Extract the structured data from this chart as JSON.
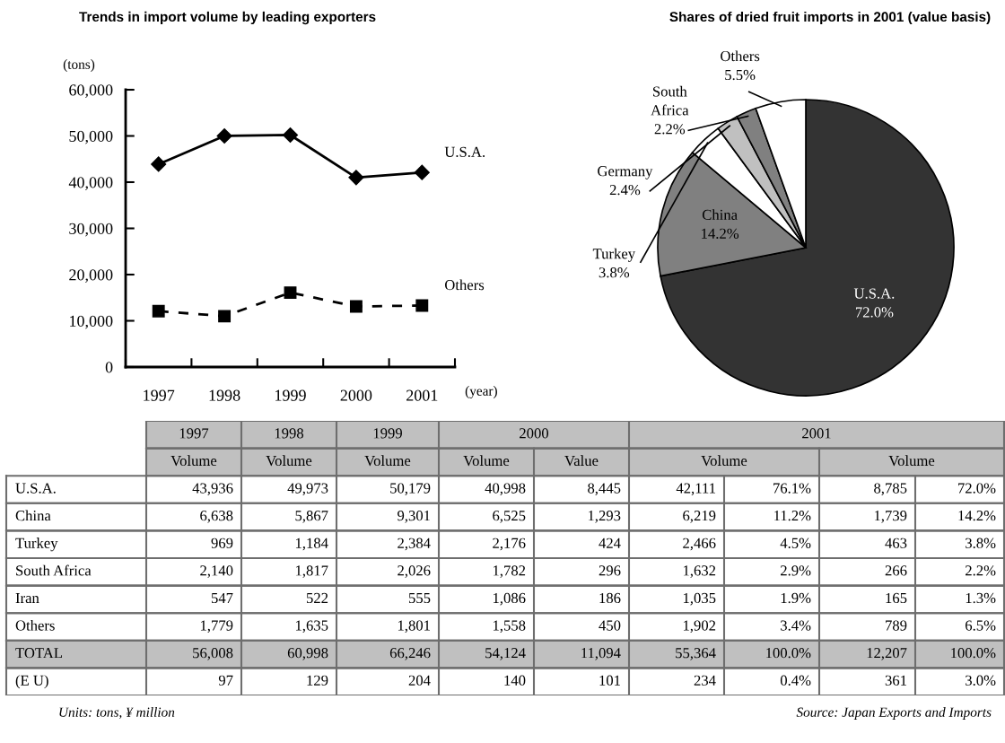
{
  "chart_data": [
    {
      "type": "line",
      "title": "Trends in import volume by leading exporters",
      "ylabel": "(tons)",
      "xlabel": "(year)",
      "categories": [
        "1997",
        "1998",
        "1999",
        "2000",
        "2001"
      ],
      "series": [
        {
          "name": "U.S.A.",
          "color": "#000000",
          "values": [
            43900,
            50000,
            50200,
            41000,
            42100
          ],
          "marker": "diamond",
          "line_style": "solid"
        },
        {
          "name": "Others",
          "color": "#000000",
          "values": [
            12100,
            11000,
            16100,
            13100,
            13300
          ],
          "marker": "square",
          "line_style": "dashed"
        }
      ],
      "ylim": [
        0,
        60000
      ],
      "yticks": [
        {
          "value": 0,
          "label": "0"
        },
        {
          "value": 10000,
          "label": "10,000"
        },
        {
          "value": 20000,
          "label": "20,000"
        },
        {
          "value": 30000,
          "label": "30,000"
        },
        {
          "value": 40000,
          "label": "40,000"
        },
        {
          "value": 50000,
          "label": "50,000"
        },
        {
          "value": 60000,
          "label": "60,000"
        }
      ],
      "grid": false,
      "legend": false
    },
    {
      "type": "pie",
      "title": "Shares of dried fruit imports in 2001 (value basis)",
      "categories": [
        "U.S.A.",
        "China",
        "Turkey",
        "Germany",
        "South Africa",
        "Others"
      ],
      "values": [
        72.0,
        14.2,
        3.8,
        2.4,
        2.2,
        5.5
      ],
      "colors": [
        "#333333",
        "#808080",
        "#ffffff",
        "#c0c0c0",
        "#808080",
        "#ffffff"
      ],
      "value_labels": [
        "72.0%",
        "14.2%",
        "3.8%",
        "2.4%",
        "2.2%",
        "5.5%"
      ]
    },
    {
      "type": "other",
      "y_categories": [
        null,
        null,
        "U.S.A.",
        "China",
        "Turkey",
        "South Africa",
        "Iran",
        "Others",
        "TOTAL",
        "(E U)"
      ],
      "cell_labels": [
        [
          "1997",
          "1998",
          "1999",
          "2000",
          null,
          "2001",
          null,
          null,
          null
        ],
        [
          "Volume",
          "Volume",
          "Volume",
          "Volume",
          "Value",
          "Volume",
          null,
          "Volume",
          null
        ],
        [
          "43,936",
          "49,973",
          "50,179",
          "40,998",
          "8,445",
          "42,111",
          "76.1%",
          "8,785",
          "72.0%"
        ],
        [
          "6,638",
          "5,867",
          "9,301",
          "6,525",
          "1,293",
          "6,219",
          "11.2%",
          "1,739",
          "14.2%"
        ],
        [
          "969",
          "1,184",
          "2,384",
          "2,176",
          "424",
          "2,466",
          "4.5%",
          "463",
          "3.8%"
        ],
        [
          "2,140",
          "1,817",
          "2,026",
          "1,782",
          "296",
          "1,632",
          "2.9%",
          "266",
          "2.2%"
        ],
        [
          "547",
          "522",
          "555",
          "1,086",
          "186",
          "1,035",
          "1.9%",
          "165",
          "1.3%"
        ],
        [
          "1,779",
          "1,635",
          "1,801",
          "1,558",
          "450",
          "1,902",
          "3.4%",
          "789",
          "6.5%"
        ],
        [
          "56,008",
          "60,998",
          "66,246",
          "54,124",
          "11,094",
          "55,364",
          "100.0%",
          "12,207",
          "100.0%"
        ],
        [
          "97",
          "129",
          "204",
          "140",
          "101",
          "234",
          "0.4%",
          "361",
          "3.0%"
        ]
      ],
      "colors": [
        "#c0c0c0",
        "#c0c0c0",
        "#ffffff",
        "#ffffff",
        "#ffffff",
        "#ffffff",
        "#ffffff",
        "#ffffff",
        "#c0c0c0",
        "#ffffff"
      ],
      "annotations": [
        "Units: tons, ¥ million",
        "Source: Japan Exports and Imports"
      ]
    }
  ]
}
